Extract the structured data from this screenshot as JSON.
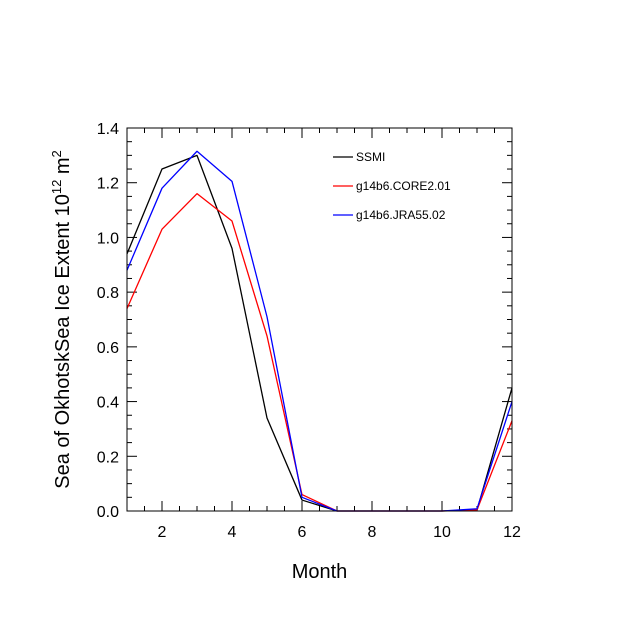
{
  "chart_data": {
    "type": "line",
    "title": "",
    "xlabel": "Month",
    "ylabel": "Sea of OkhotskSea Ice Extent 10",
    "ylabel_superscript": "12",
    "ylabel_tail": " m",
    "ylabel_tail_superscript": "2",
    "xlim": [
      1,
      12
    ],
    "ylim": [
      0,
      1.4
    ],
    "x_ticks": [
      2,
      4,
      6,
      8,
      10,
      12
    ],
    "x_tick_labels": [
      "2",
      "4",
      "6",
      "8",
      "10",
      "12"
    ],
    "y_ticks": [
      0,
      0.2,
      0.4,
      0.6,
      0.8,
      1.0,
      1.2,
      1.4
    ],
    "y_tick_labels": [
      "0.0",
      "0.2",
      "0.4",
      "0.6",
      "0.8",
      "1.0",
      "1.2",
      "1.4"
    ],
    "x": [
      1,
      2,
      3,
      4,
      5,
      6,
      7,
      8,
      9,
      10,
      11,
      12
    ],
    "grid": false,
    "legend_position": "top-right",
    "series": [
      {
        "name": "SSMI",
        "color": "#000000",
        "values": [
          0.94,
          1.25,
          1.3,
          0.96,
          0.34,
          0.04,
          0.0,
          0.0,
          0.0,
          0.0,
          0.003,
          0.45
        ]
      },
      {
        "name": "g14b6.CORE2.01",
        "color": "#ff0000",
        "values": [
          0.74,
          1.03,
          1.16,
          1.06,
          0.64,
          0.06,
          0.0,
          0.0,
          0.0,
          0.0,
          0.004,
          0.33
        ]
      },
      {
        "name": "g14b6.JRA55.02",
        "color": "#0000ff",
        "values": [
          0.88,
          1.18,
          1.315,
          1.205,
          0.71,
          0.05,
          0.0,
          0.0,
          0.0,
          0.0,
          0.008,
          0.4
        ]
      }
    ]
  }
}
